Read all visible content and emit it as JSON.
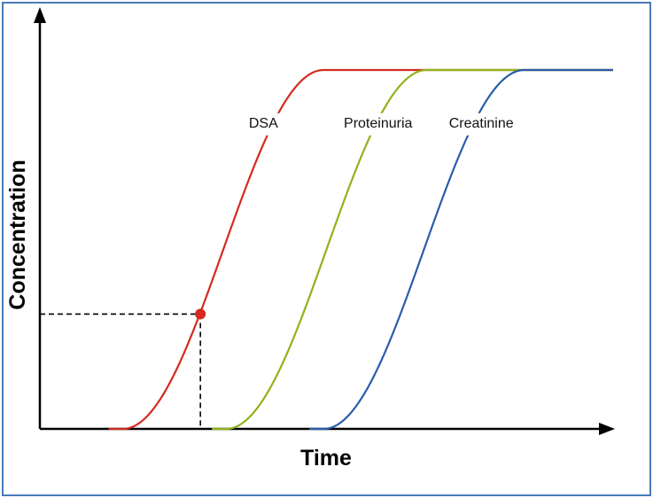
{
  "chart_data": {
    "type": "line",
    "xlabel": "Time",
    "ylabel": "Concentration",
    "xlim": [
      0,
      10
    ],
    "ylim": [
      0,
      1
    ],
    "grid": false,
    "legend": "inline labels near curves",
    "series": [
      {
        "name": "DSA",
        "color": "#d42a20",
        "midpoint": 3.2,
        "steepness": 1.75,
        "label_at": [
          3.9,
          0.84
        ]
      },
      {
        "name": "Proteinuria",
        "color": "#8fb31a",
        "midpoint": 5.0,
        "steepness": 1.75,
        "label_at": [
          5.9,
          0.84
        ]
      },
      {
        "name": "Creatinine",
        "color": "#2a5caa",
        "midpoint": 6.7,
        "steepness": 1.75,
        "label_at": [
          7.7,
          0.84
        ]
      }
    ],
    "annotation": {
      "type": "marker",
      "series": "DSA",
      "x": 2.8,
      "y": 0.32,
      "color": "#d42a20",
      "guides": "dashed"
    }
  }
}
